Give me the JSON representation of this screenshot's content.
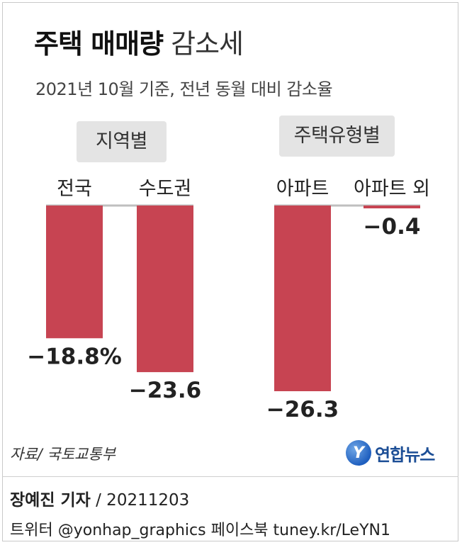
{
  "header": {
    "title_bold": "주택 매매량",
    "title_light": "감소세",
    "subtitle": "2021년 10월 기준, 전년 동월 대비 감소율"
  },
  "groups": [
    {
      "label": "지역별"
    },
    {
      "label": "주택유형별"
    }
  ],
  "chart_data": {
    "type": "bar",
    "title": "주택 매매량 감소세",
    "subtitle": "2021년 10월 기준, 전년 동월 대비 감소율",
    "categories": [
      "전국",
      "수도권",
      "아파트",
      "아파트 외"
    ],
    "values": [
      -18.8,
      -23.6,
      -26.3,
      -0.4
    ],
    "value_labels": [
      "−18.8%",
      "−23.6",
      "−26.3",
      "−0.4"
    ],
    "groups": [
      {
        "label": "지역별",
        "categories": [
          "전국",
          "수도권"
        ]
      },
      {
        "label": "주택유형별",
        "categories": [
          "아파트",
          "아파트 외"
        ]
      }
    ],
    "ylim": [
      -26.3,
      0
    ],
    "bar_color": "#c74452",
    "baseline_color": "#bfbfbf",
    "grid": false
  },
  "footer": {
    "source": "자료/ 국토교통부",
    "logo_glyph": "Y",
    "logo_text": "연합뉴스",
    "reporter_name": "장예진 기자",
    "reporter_date": " / 20211203",
    "sns": "트위터 @yonhap_graphics  페이스북 tuney.kr/LeYN1"
  }
}
